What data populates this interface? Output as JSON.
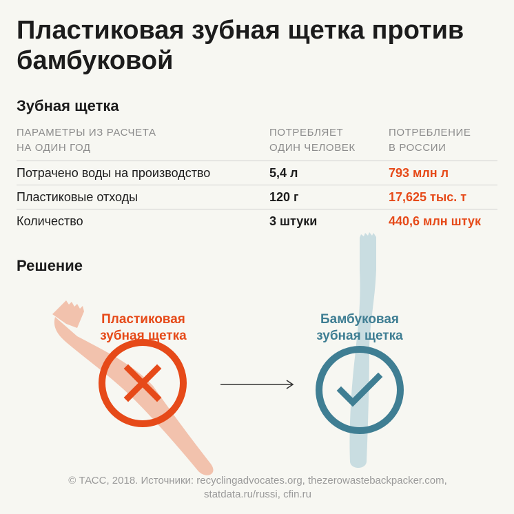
{
  "title": "Пластиковая зубная щетка против бамбуковой",
  "subtitle": "Зубная щетка",
  "table": {
    "headers": [
      {
        "line1": "ПАРАМЕТРЫ ИЗ РАСЧЕТА",
        "line2": "НА ОДИН ГОД"
      },
      {
        "line1": "ПОТРЕБЛЯЕТ",
        "line2": "ОДИН ЧЕЛОВЕК"
      },
      {
        "line1": "ПОТРЕБЛЕНИЕ",
        "line2": "В РОССИИ"
      }
    ],
    "rows": [
      {
        "param": "Потрачено воды на производство",
        "person": "5,4 л",
        "russia": "793 млн л"
      },
      {
        "param": "Пластиковые отходы",
        "person": "120 г",
        "russia": "17,625 тыс. т"
      },
      {
        "param": "Количество",
        "person": "3 штуки",
        "russia": "440,6 млн штук"
      }
    ]
  },
  "solution": {
    "heading": "Решение",
    "plastic": {
      "line1": "Пластиковая",
      "line2": "зубная щетка",
      "icon": "cross-icon",
      "color": "#e64a19"
    },
    "bamboo": {
      "line1": "Бамбуковая",
      "line2": "зубная щетка",
      "icon": "check-icon",
      "color": "#3f7e93"
    },
    "arrow_icon": "arrow-right-icon"
  },
  "footer": {
    "line1": "© ТАСС, 2018. Источники: recyclingadvocates.org, thezerowastebackpacker.com,",
    "line2": "statdata.ru/russi, cfin.ru"
  }
}
